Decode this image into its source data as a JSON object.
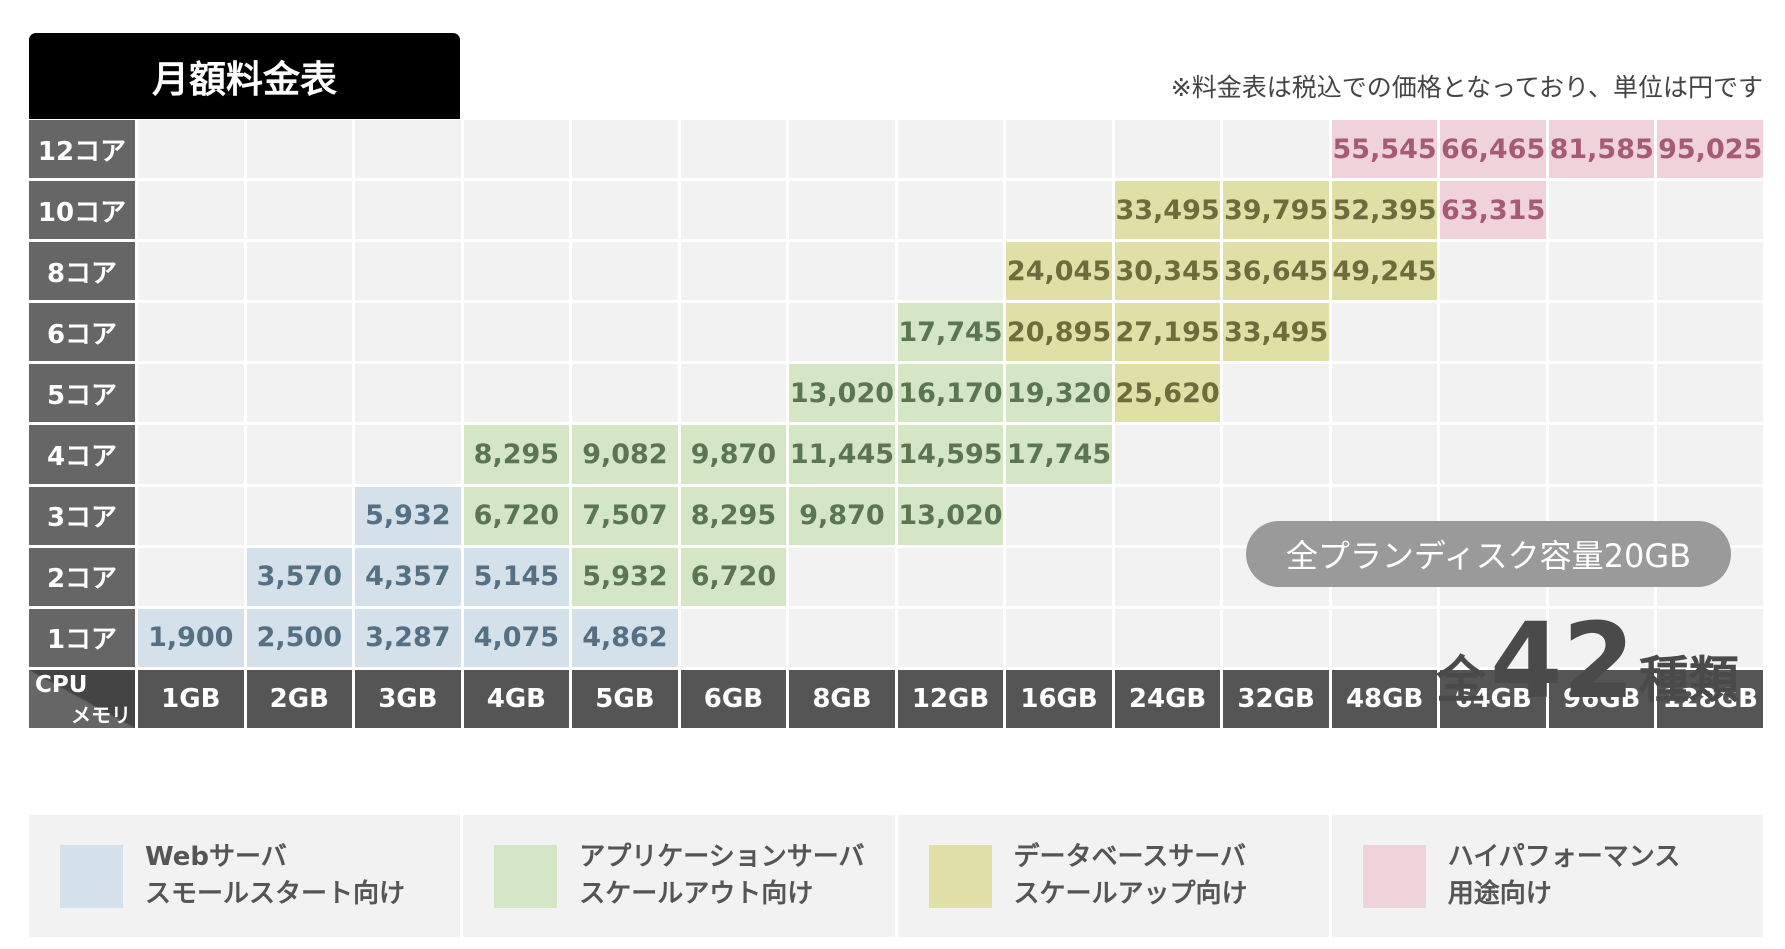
{
  "title": "月額料金表",
  "note": "※料金表は税込での価格となっており、単位は円です",
  "axis": {
    "cpu_label": "CPU",
    "memory_label": "メモリ"
  },
  "columns": [
    "1GB",
    "2GB",
    "3GB",
    "4GB",
    "5GB",
    "6GB",
    "8GB",
    "12GB",
    "16GB",
    "24GB",
    "32GB",
    "48GB",
    "64GB",
    "96GB",
    "128GB"
  ],
  "rows": [
    {
      "label": "12コア",
      "cells": [
        null,
        null,
        null,
        null,
        null,
        null,
        null,
        null,
        null,
        null,
        null,
        {
          "v": "55,545",
          "t": "pink"
        },
        {
          "v": "66,465",
          "t": "pink"
        },
        {
          "v": "81,585",
          "t": "pink"
        },
        {
          "v": "95,025",
          "t": "pink"
        }
      ]
    },
    {
      "label": "10コア",
      "cells": [
        null,
        null,
        null,
        null,
        null,
        null,
        null,
        null,
        null,
        {
          "v": "33,495",
          "t": "olive"
        },
        {
          "v": "39,795",
          "t": "olive"
        },
        {
          "v": "52,395",
          "t": "olive"
        },
        {
          "v": "63,315",
          "t": "pink"
        },
        null,
        null
      ]
    },
    {
      "label": "8コア",
      "cells": [
        null,
        null,
        null,
        null,
        null,
        null,
        null,
        null,
        {
          "v": "24,045",
          "t": "olive"
        },
        {
          "v": "30,345",
          "t": "olive"
        },
        {
          "v": "36,645",
          "t": "olive"
        },
        {
          "v": "49,245",
          "t": "olive"
        },
        null,
        null,
        null
      ]
    },
    {
      "label": "6コア",
      "cells": [
        null,
        null,
        null,
        null,
        null,
        null,
        null,
        {
          "v": "17,745",
          "t": "green"
        },
        {
          "v": "20,895",
          "t": "olive"
        },
        {
          "v": "27,195",
          "t": "olive"
        },
        {
          "v": "33,495",
          "t": "olive"
        },
        null,
        null,
        null,
        null
      ]
    },
    {
      "label": "5コア",
      "cells": [
        null,
        null,
        null,
        null,
        null,
        null,
        {
          "v": "13,020",
          "t": "green"
        },
        {
          "v": "16,170",
          "t": "green"
        },
        {
          "v": "19,320",
          "t": "green"
        },
        {
          "v": "25,620",
          "t": "olive"
        },
        null,
        null,
        null,
        null,
        null
      ]
    },
    {
      "label": "4コア",
      "cells": [
        null,
        null,
        null,
        {
          "v": "8,295",
          "t": "green"
        },
        {
          "v": "9,082",
          "t": "green"
        },
        {
          "v": "9,870",
          "t": "green"
        },
        {
          "v": "11,445",
          "t": "green"
        },
        {
          "v": "14,595",
          "t": "green"
        },
        {
          "v": "17,745",
          "t": "green"
        },
        null,
        null,
        null,
        null,
        null,
        null
      ]
    },
    {
      "label": "3コア",
      "cells": [
        null,
        null,
        {
          "v": "5,932",
          "t": "blue"
        },
        {
          "v": "6,720",
          "t": "green"
        },
        {
          "v": "7,507",
          "t": "green"
        },
        {
          "v": "8,295",
          "t": "green"
        },
        {
          "v": "9,870",
          "t": "green"
        },
        {
          "v": "13,020",
          "t": "green"
        },
        null,
        null,
        null,
        null,
        null,
        null,
        null
      ]
    },
    {
      "label": "2コア",
      "cells": [
        null,
        {
          "v": "3,570",
          "t": "blue"
        },
        {
          "v": "4,357",
          "t": "blue"
        },
        {
          "v": "5,145",
          "t": "blue"
        },
        {
          "v": "5,932",
          "t": "green"
        },
        {
          "v": "6,720",
          "t": "green"
        },
        null,
        null,
        null,
        null,
        null,
        null,
        null,
        null,
        null
      ]
    },
    {
      "label": "1コア",
      "cells": [
        {
          "v": "1,900",
          "t": "blue"
        },
        {
          "v": "2,500",
          "t": "blue"
        },
        {
          "v": "3,287",
          "t": "blue"
        },
        {
          "v": "4,075",
          "t": "blue"
        },
        {
          "v": "4,862",
          "t": "blue"
        },
        null,
        null,
        null,
        null,
        null,
        null,
        null,
        null,
        null,
        null
      ]
    }
  ],
  "disk_badge": "全プランディスク容量20GB",
  "total": {
    "prefix": "全",
    "count": "42",
    "suffix": "種類"
  },
  "legend": [
    {
      "color": "#d5e1ea",
      "line1": "Webサーバ",
      "line2": "スモールスタート向け"
    },
    {
      "color": "#d4e6c3",
      "line1": "アプリケーションサーバ",
      "line2": "スケールアウト向け"
    },
    {
      "color": "#e0e0a6",
      "line1": "データベースサーバ",
      "line2": "スケールアップ向け"
    },
    {
      "color": "#f0d2db",
      "line1": "ハイパフォーマンス",
      "line2": "用途向け"
    }
  ]
}
